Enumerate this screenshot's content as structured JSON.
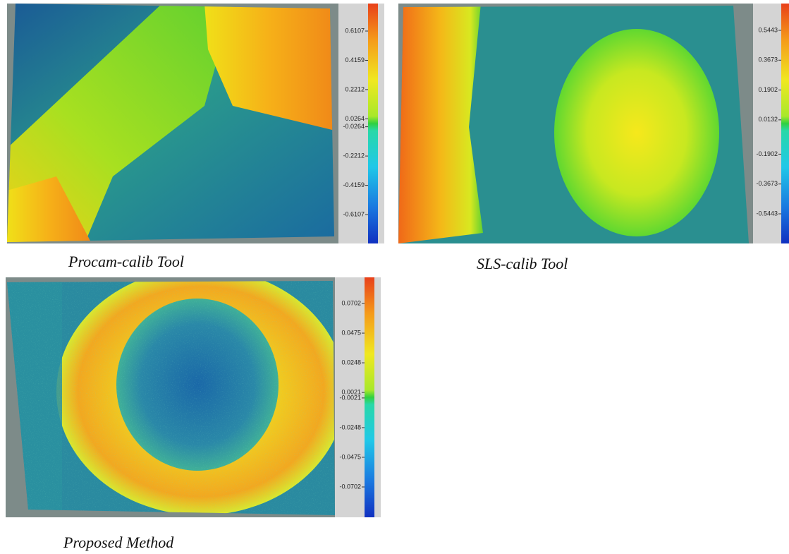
{
  "panels": [
    {
      "caption": "Procam-calib Tool",
      "colorbar_ticks": [
        0.6107,
        0.4159,
        0.2212,
        0.0264,
        -0.0264,
        -0.2212,
        -0.4159,
        -0.6107
      ]
    },
    {
      "caption": "SLS-calib Tool",
      "colorbar_ticks": [
        0.5443,
        0.3673,
        0.1902,
        0.0132,
        -0.1902,
        -0.3673,
        -0.5443
      ]
    },
    {
      "caption": "Proposed Method",
      "colorbar_ticks": [
        0.0702,
        0.0475,
        0.0248,
        0.0021,
        -0.0021,
        -0.0248,
        -0.0475,
        -0.0702
      ]
    }
  ]
}
